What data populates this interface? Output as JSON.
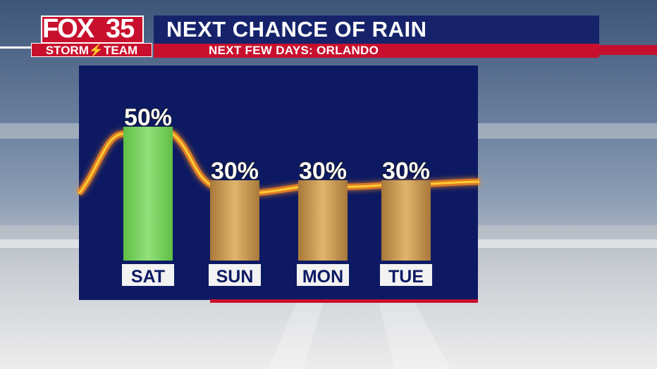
{
  "header": {
    "logo_brand": "FOX",
    "logo_channel": "35",
    "logo_team": "STORM⚡TEAM",
    "title": "NEXT CHANCE OF RAIN",
    "subtitle": "NEXT FEW DAYS: ORLANDO"
  },
  "colors": {
    "panel": "#0d1a63",
    "header_bar": "#16236b",
    "accent_red": "#c8102e",
    "bar_highlight": "#7fd65a",
    "bar_normal": "#c99a4e",
    "trend_line": "#ffcc33"
  },
  "chart_data": {
    "type": "bar",
    "title": "NEXT CHANCE OF RAIN",
    "categories": [
      "SAT",
      "SUN",
      "MON",
      "TUE"
    ],
    "values": [
      50,
      30,
      30,
      30
    ],
    "value_labels": [
      "50%",
      "30%",
      "30%",
      "30%"
    ],
    "highlight_index": 0,
    "xlabel": "",
    "ylabel": "",
    "ylim": [
      0,
      60
    ],
    "grid": false,
    "legend": "none",
    "overlay": "glowing trend line"
  }
}
